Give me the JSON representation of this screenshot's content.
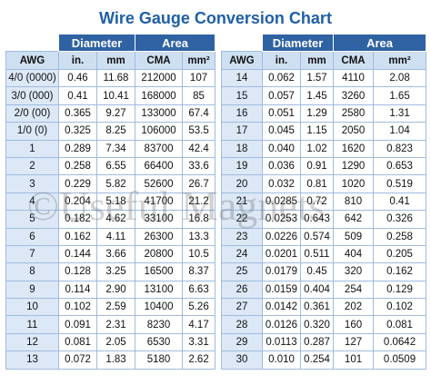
{
  "title": "Wire Gauge Conversion Chart",
  "watermark": "©Useful Magnets",
  "tables": [
    {
      "groups": [
        "Diameter",
        "Area"
      ],
      "columns": [
        "AWG",
        "in.",
        "mm",
        "CMA",
        "mm²"
      ],
      "rows": [
        [
          "4/0 (0000)",
          "0.46",
          "11.68",
          "212000",
          "107"
        ],
        [
          "3/0 (000)",
          "0.41",
          "10.41",
          "168000",
          "85"
        ],
        [
          "2/0 (00)",
          "0.365",
          "9.27",
          "133000",
          "67.4"
        ],
        [
          "1/0 (0)",
          "0.325",
          "8.25",
          "106000",
          "53.5"
        ],
        [
          "1",
          "0.289",
          "7.34",
          "83700",
          "42.4"
        ],
        [
          "2",
          "0.258",
          "6.55",
          "66400",
          "33.6"
        ],
        [
          "3",
          "0.229",
          "5.82",
          "52600",
          "26.7"
        ],
        [
          "4",
          "0.204",
          "5.18",
          "41700",
          "21.2"
        ],
        [
          "5",
          "0.182",
          "4.62",
          "33100",
          "16.8"
        ],
        [
          "6",
          "0.162",
          "4.11",
          "26300",
          "13.3"
        ],
        [
          "7",
          "0.144",
          "3.66",
          "20800",
          "10.5"
        ],
        [
          "8",
          "0.128",
          "3.25",
          "16500",
          "8.37"
        ],
        [
          "9",
          "0.114",
          "2.90",
          "13100",
          "6.63"
        ],
        [
          "10",
          "0.102",
          "2.59",
          "10400",
          "5.26"
        ],
        [
          "11",
          "0.091",
          "2.31",
          "8230",
          "4.17"
        ],
        [
          "12",
          "0.081",
          "2.05",
          "6530",
          "3.31"
        ],
        [
          "13",
          "0.072",
          "1.83",
          "5180",
          "2.62"
        ]
      ]
    },
    {
      "groups": [
        "Diameter",
        "Area"
      ],
      "columns": [
        "AWG",
        "in.",
        "mm",
        "CMA",
        "mm²"
      ],
      "rows": [
        [
          "14",
          "0.062",
          "1.57",
          "4110",
          "2.08"
        ],
        [
          "15",
          "0.057",
          "1.45",
          "3260",
          "1.65"
        ],
        [
          "16",
          "0.051",
          "1.29",
          "2580",
          "1.31"
        ],
        [
          "17",
          "0.045",
          "1.15",
          "2050",
          "1.04"
        ],
        [
          "18",
          "0.040",
          "1.02",
          "1620",
          "0.823"
        ],
        [
          "19",
          "0.036",
          "0.91",
          "1290",
          "0.653"
        ],
        [
          "20",
          "0.032",
          "0.81",
          "1020",
          "0.519"
        ],
        [
          "21",
          "0.0285",
          "0.72",
          "810",
          "0.41"
        ],
        [
          "22",
          "0.0253",
          "0.643",
          "642",
          "0.326"
        ],
        [
          "23",
          "0.0226",
          "0.574",
          "509",
          "0.258"
        ],
        [
          "24",
          "0.0201",
          "0.511",
          "404",
          "0.205"
        ],
        [
          "25",
          "0.0179",
          "0.45",
          "320",
          "0.162"
        ],
        [
          "26",
          "0.0159",
          "0.404",
          "254",
          "0.129"
        ],
        [
          "27",
          "0.0142",
          "0.361",
          "202",
          "0.102"
        ],
        [
          "28",
          "0.0126",
          "0.320",
          "160",
          "0.081"
        ],
        [
          "29",
          "0.0113",
          "0.287",
          "127",
          "0.0642"
        ],
        [
          "30",
          "0.010",
          "0.254",
          "101",
          "0.0509"
        ]
      ]
    }
  ]
}
